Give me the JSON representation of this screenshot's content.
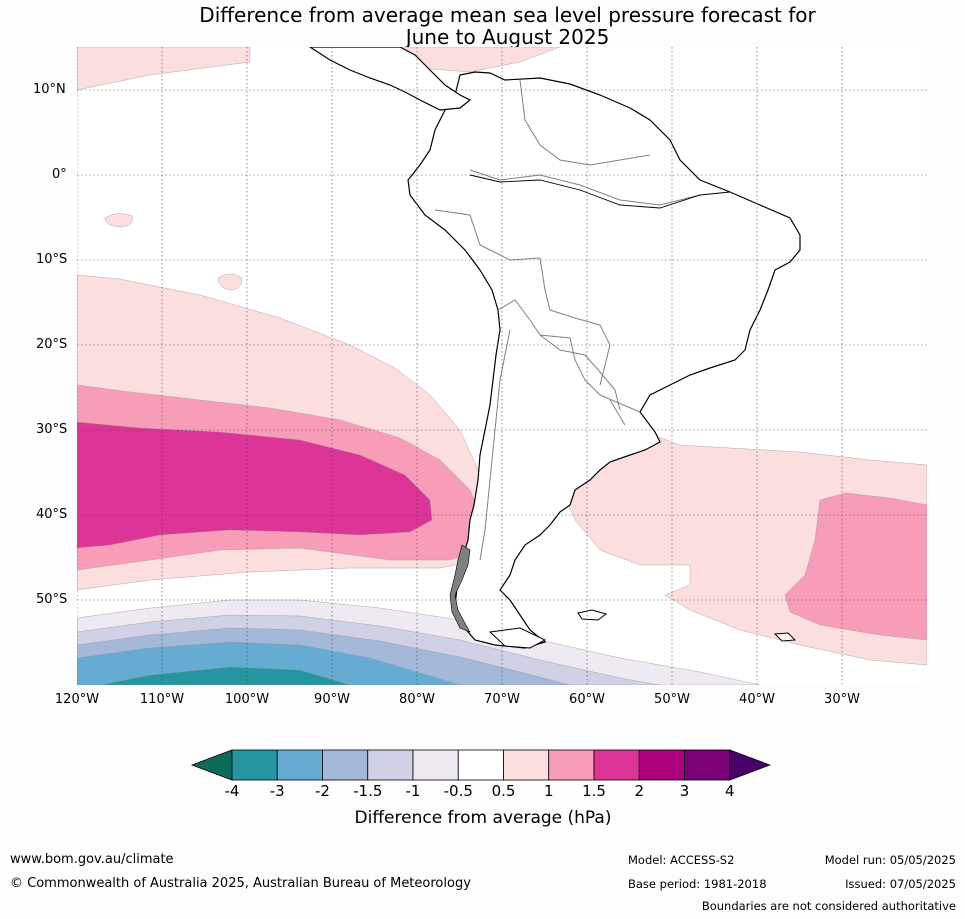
{
  "title": {
    "line1": "Difference from average mean sea level pressure forecast for",
    "line2": "June to August 2025"
  },
  "map": {
    "region": "South America",
    "lat_labels": [
      "10°N",
      "0°",
      "10°S",
      "20°S",
      "30°S",
      "40°S",
      "50°S"
    ],
    "lon_labels": [
      "120°W",
      "110°W",
      "100°W",
      "90°W",
      "80°W",
      "70°W",
      "60°W",
      "50°W",
      "40°W",
      "30°W"
    ],
    "colors": {
      "ocean_default": "#ffffff",
      "land_fill": "#ffffff",
      "coastline": "#000000",
      "borders": "#808080",
      "gridlines": "#555555"
    }
  },
  "colorbar": {
    "tick_labels": [
      "-4",
      "-3",
      "-2",
      "-1.5",
      "-1",
      "-0.5",
      "0.5",
      "1",
      "1.5",
      "2",
      "3",
      "4"
    ],
    "colors": [
      "#0c6b5a",
      "#2596a0",
      "#66abd2",
      "#a4b8d9",
      "#d0d1e6",
      "#efe9f1",
      "#ffffff",
      "#fddede",
      "#f89db8",
      "#dd3497",
      "#ae017e",
      "#7a0177",
      "#49006a"
    ],
    "label": "Difference from average (hPa)"
  },
  "footer": {
    "website": "www.bom.gov.au/climate",
    "copyright": "© Commonwealth of Australia 2025, Australian Bureau of Meteorology",
    "model": "Model: ACCESS-S2",
    "base_period": "Base period: 1981-2018",
    "model_run": "Model run: 05/05/2025",
    "issued": "Issued: 07/05/2025",
    "disclaimer": "Boundaries are not considered authoritative"
  }
}
